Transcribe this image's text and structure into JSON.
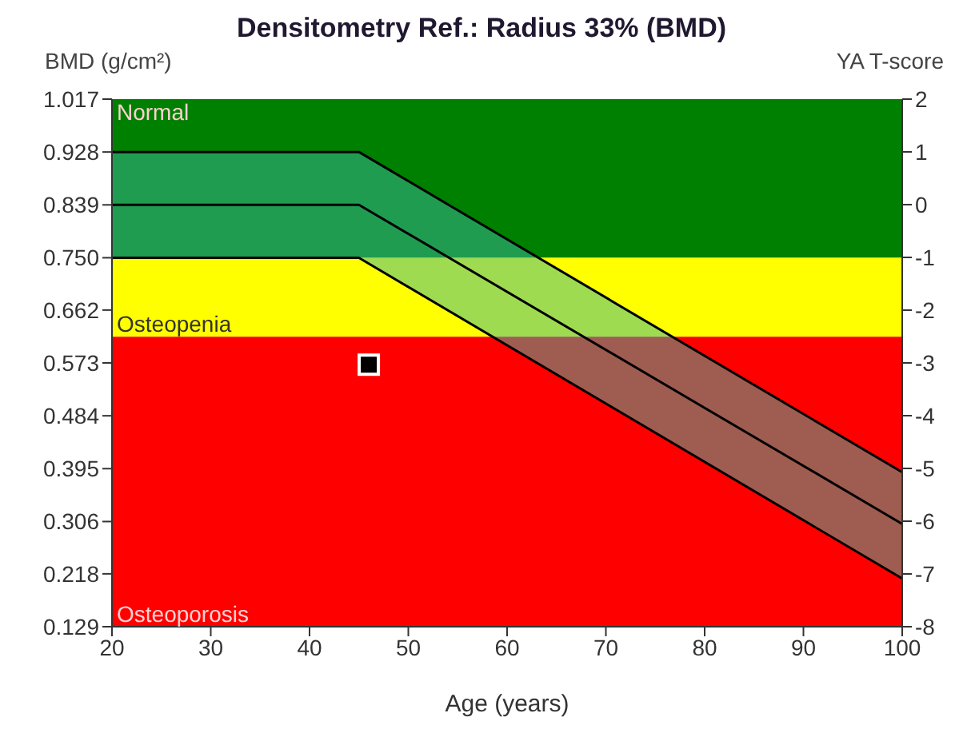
{
  "chart_data": {
    "type": "line",
    "title": "Densitometry Ref.: Radius 33% (BMD)",
    "xlabel": "Age (years)",
    "ylabel": "BMD (g/cm²)",
    "y2label": "YA T-score",
    "xlim": [
      20,
      100
    ],
    "xticks": [
      20,
      30,
      40,
      50,
      60,
      70,
      80,
      90,
      100
    ],
    "ylim": [
      0.129,
      1.017
    ],
    "yticks": [
      0.129,
      0.218,
      0.306,
      0.395,
      0.484,
      0.573,
      0.662,
      {
        "value": 0.75,
        "label": "0.750"
      },
      0.839,
      0.928,
      1.017
    ],
    "y2lim": [
      -8,
      2
    ],
    "y2ticks": [
      -8,
      -7,
      -6,
      -5,
      -4,
      -3,
      -2,
      -1,
      0,
      1,
      2
    ],
    "bands": [
      {
        "axis": "y",
        "from": 0.75,
        "to": 1.017,
        "label": "Normal",
        "color": "#008000"
      },
      {
        "axis": "y",
        "from": 0.617,
        "to": 0.75,
        "label": "Osteopenia",
        "color": "#ffff00"
      },
      {
        "axis": "y",
        "from": 0.129,
        "to": 0.617,
        "label": "Osteoporosis",
        "color": "#ff0000"
      }
    ],
    "series": [
      {
        "type": "line",
        "color": "#000000",
        "x": [
          20,
          45,
          100
        ],
        "values": [
          0.839,
          0.839,
          0.302
        ],
        "lower": [
          0.75,
          0.75,
          0.21
        ],
        "upper": [
          0.928,
          0.928,
          0.389
        ]
      },
      {
        "type": "line",
        "color": "#000000",
        "x": [
          20,
          45,
          100
        ],
        "values": [
          0.928,
          0.928,
          0.389
        ]
      },
      {
        "type": "line",
        "color": "#000000",
        "x": [
          20,
          45,
          100
        ],
        "values": [
          0.75,
          0.75,
          0.21
        ]
      },
      {
        "type": "scatter",
        "color": "#000000",
        "marker": "square",
        "x": [
          46
        ],
        "values": [
          0.57
        ]
      }
    ]
  }
}
